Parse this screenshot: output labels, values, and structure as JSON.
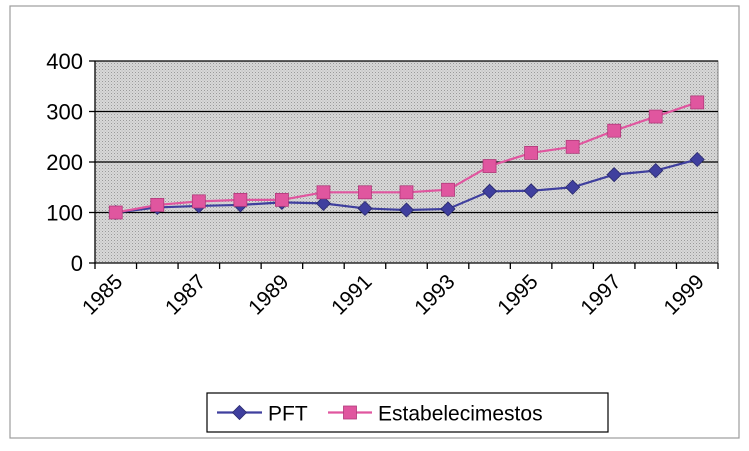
{
  "chart_data": {
    "type": "line",
    "x": [
      1985,
      1986,
      1987,
      1988,
      1989,
      1990,
      1991,
      1992,
      1993,
      1994,
      1995,
      1996,
      1997,
      1998,
      1999
    ],
    "x_tick_labels": [
      "1985",
      "1987",
      "1989",
      "1991",
      "1993",
      "1995",
      "1997",
      "1999"
    ],
    "y_ticks": [
      0,
      100,
      200,
      300,
      400
    ],
    "ylim": [
      0,
      400
    ],
    "grid": "horizontal",
    "plot_background": "gray dotted",
    "legend_position": "bottom",
    "series": [
      {
        "name": "PFT",
        "color": "#3f3f9e",
        "marker": "diamond",
        "values": [
          100,
          110,
          113,
          115,
          120,
          118,
          108,
          105,
          107,
          142,
          143,
          150,
          175,
          183,
          205
        ]
      },
      {
        "name": "Estabelecimestos",
        "color": "#e0569f",
        "marker": "square",
        "values": [
          100,
          115,
          122,
          125,
          125,
          140,
          140,
          140,
          145,
          192,
          218,
          230,
          262,
          290,
          318
        ]
      }
    ]
  }
}
